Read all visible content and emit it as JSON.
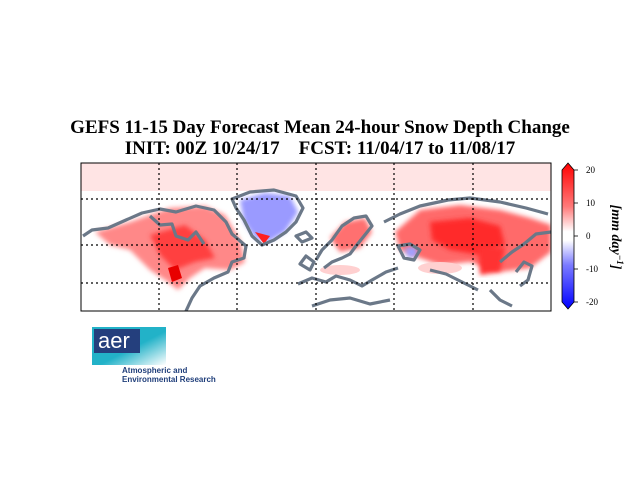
{
  "title": {
    "line1": "GEFS 11-15 Day Forecast Mean 24-hour Snow Depth Change",
    "line2": "INIT: 00Z 10/24/17    FCST: 11/04/17 to 11/08/17"
  },
  "colorbar": {
    "ticks": [
      "20",
      "10",
      "0",
      "-10",
      "-20"
    ],
    "tick_values": [
      20,
      10,
      0,
      -10,
      -20
    ],
    "range": [
      -20,
      20
    ],
    "label": "[mm day",
    "label_sup": "−1",
    "label_end": "]",
    "colors": {
      "low": "#0000ff",
      "mid": "#ffffff",
      "high": "#ff0000"
    }
  },
  "map": {
    "gridline_style": "dotted",
    "coastline_color": "#6b7888",
    "regions": [
      {
        "name": "arctic-band",
        "value": 2
      },
      {
        "name": "alaska-canada",
        "value": 8
      },
      {
        "name": "north-america",
        "value": 10
      },
      {
        "name": "greenland",
        "value": -8
      },
      {
        "name": "scandinavia",
        "value": 8
      },
      {
        "name": "siberia",
        "value": 11
      },
      {
        "name": "central-asia",
        "value": 9
      },
      {
        "name": "mongolia-north-china",
        "value": 12
      },
      {
        "name": "caspian",
        "value": -6
      }
    ]
  },
  "logo": {
    "word": "aer",
    "line1": "Atmospheric and",
    "line2": "Environmental Research",
    "colors": {
      "navy": "#243f7d",
      "cyan": "#22b2c8"
    }
  }
}
